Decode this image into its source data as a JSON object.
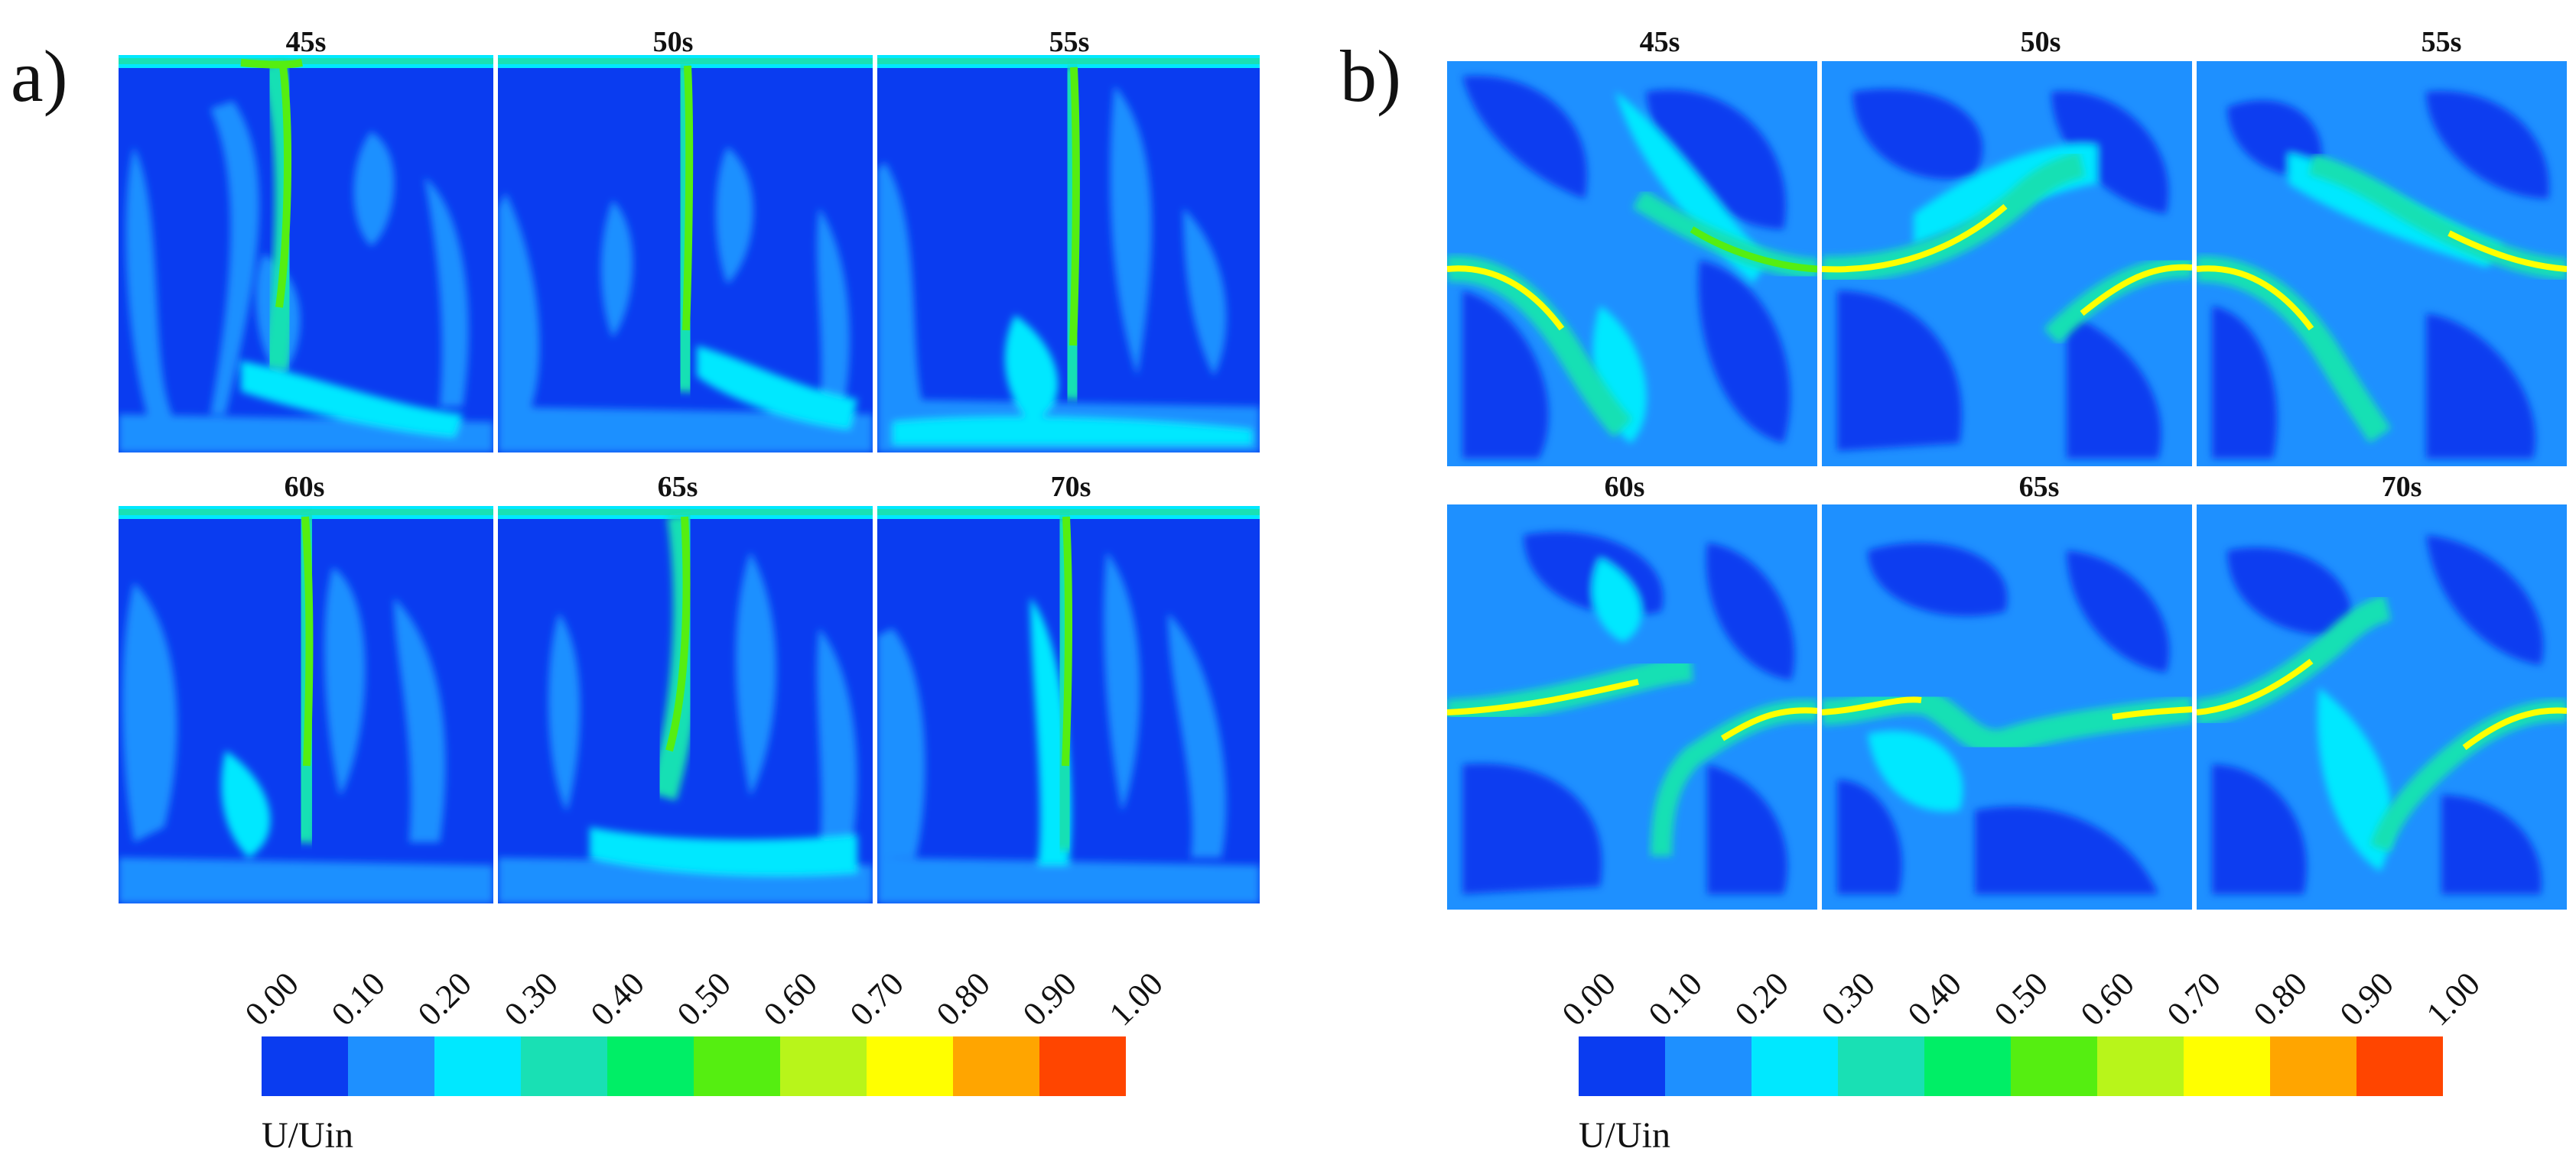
{
  "panels": [
    {
      "label": "a)",
      "snapshots": [
        "45s",
        "50s",
        "55s",
        "60s",
        "65s",
        "70s"
      ],
      "colorbar": {
        "ticks": [
          "0.00",
          "0.10",
          "0.20",
          "0.30",
          "0.40",
          "0.50",
          "0.60",
          "0.70",
          "0.80",
          "0.90",
          "1.00"
        ],
        "colors": [
          "#0a3cf0",
          "#1e90ff",
          "#00e8ff",
          "#19e0b4",
          "#00ee66",
          "#55ee11",
          "#b8f51a",
          "#ffff00",
          "#ffa500",
          "#ff4500"
        ],
        "title": "U/Uin"
      }
    },
    {
      "label": "b)",
      "snapshots": [
        "45s",
        "50s",
        "55s",
        "60s",
        "65s",
        "70s"
      ],
      "colorbar": {
        "ticks": [
          "0.00",
          "0.10",
          "0.20",
          "0.30",
          "0.40",
          "0.50",
          "0.60",
          "0.70",
          "0.80",
          "0.90",
          "1.00"
        ],
        "colors": [
          "#0a3cf0",
          "#1e90ff",
          "#00e8ff",
          "#19e0b4",
          "#00ee66",
          "#55ee11",
          "#b8f51a",
          "#ffff00",
          "#ffa500",
          "#ff4500"
        ],
        "title": "U/Uin"
      }
    }
  ]
}
